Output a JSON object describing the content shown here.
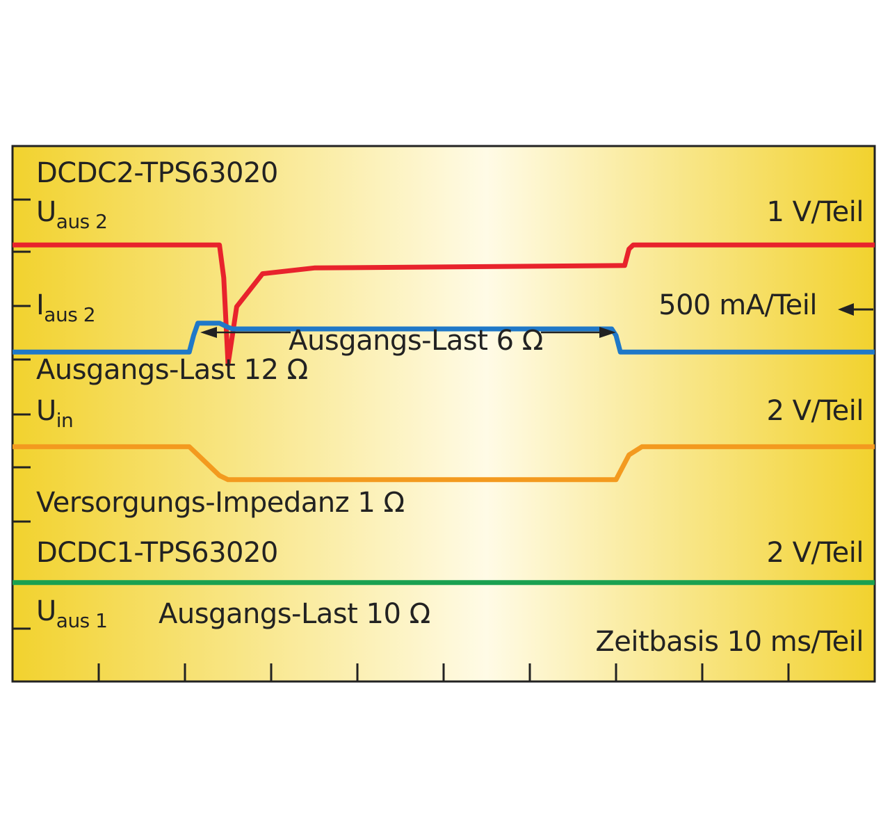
{
  "chart_data": {
    "type": "line",
    "title_top": "DCDC2-TPS63020",
    "title_bottom": "DCDC1-TPS63020",
    "timebase_label": "Zeitbasis 10 ms/Teil",
    "x_divisions": 10,
    "colors": {
      "background_edge": "#f2d22e",
      "background_center": "#fffbe6",
      "frame": "#222222",
      "u_aus2": "#e8232c",
      "i_aus2": "#1f78c8",
      "u_in": "#f39a1f",
      "u_aus1": "#1aa050"
    },
    "series": [
      {
        "key": "u_aus2",
        "label_main": "U",
        "label_sub": "aus 2",
        "scale_label": "1 V/Teil",
        "x": [
          0,
          2.4,
          2.45,
          2.5,
          2.6,
          2.9,
          3.5,
          7.1,
          7.15,
          7.2,
          10
        ],
        "y": [
          5.3,
          5.3,
          4.9,
          3.85,
          4.55,
          4.95,
          5.02,
          5.05,
          5.25,
          5.3,
          5.3
        ]
      },
      {
        "key": "i_aus2",
        "label_main": "I",
        "label_sub": "aus 2",
        "scale_label": "500 mA/Teil",
        "x": [
          0,
          2.05,
          2.1,
          2.15,
          2.4,
          2.5,
          2.55,
          6.95,
          7.0,
          7.05,
          10
        ],
        "y": [
          4.0,
          4.0,
          4.2,
          4.35,
          4.35,
          4.3,
          4.28,
          4.28,
          4.2,
          4.0,
          4.0
        ]
      },
      {
        "key": "u_in",
        "label_main": "U",
        "label_sub": "in",
        "scale_label": "2 V/Teil",
        "x": [
          0,
          2.05,
          2.15,
          2.4,
          2.5,
          7.0,
          7.05,
          7.15,
          7.3,
          10
        ],
        "y": [
          2.85,
          2.85,
          2.75,
          2.5,
          2.45,
          2.45,
          2.55,
          2.75,
          2.85,
          2.85
        ]
      },
      {
        "key": "u_aus1",
        "label_main": "U",
        "label_sub": "aus 1",
        "scale_label": "2 V/Teil",
        "x": [
          0,
          10
        ],
        "y": [
          1.2,
          1.2
        ]
      }
    ],
    "annotations": {
      "load_12": "Ausgangs-Last 12 Ω",
      "load_6": "Ausgangs-Last 6 Ω",
      "supply_impedance": "Versorgungs-Impedanz 1 Ω",
      "load_10": "Ausgangs-Last 10 Ω"
    }
  }
}
